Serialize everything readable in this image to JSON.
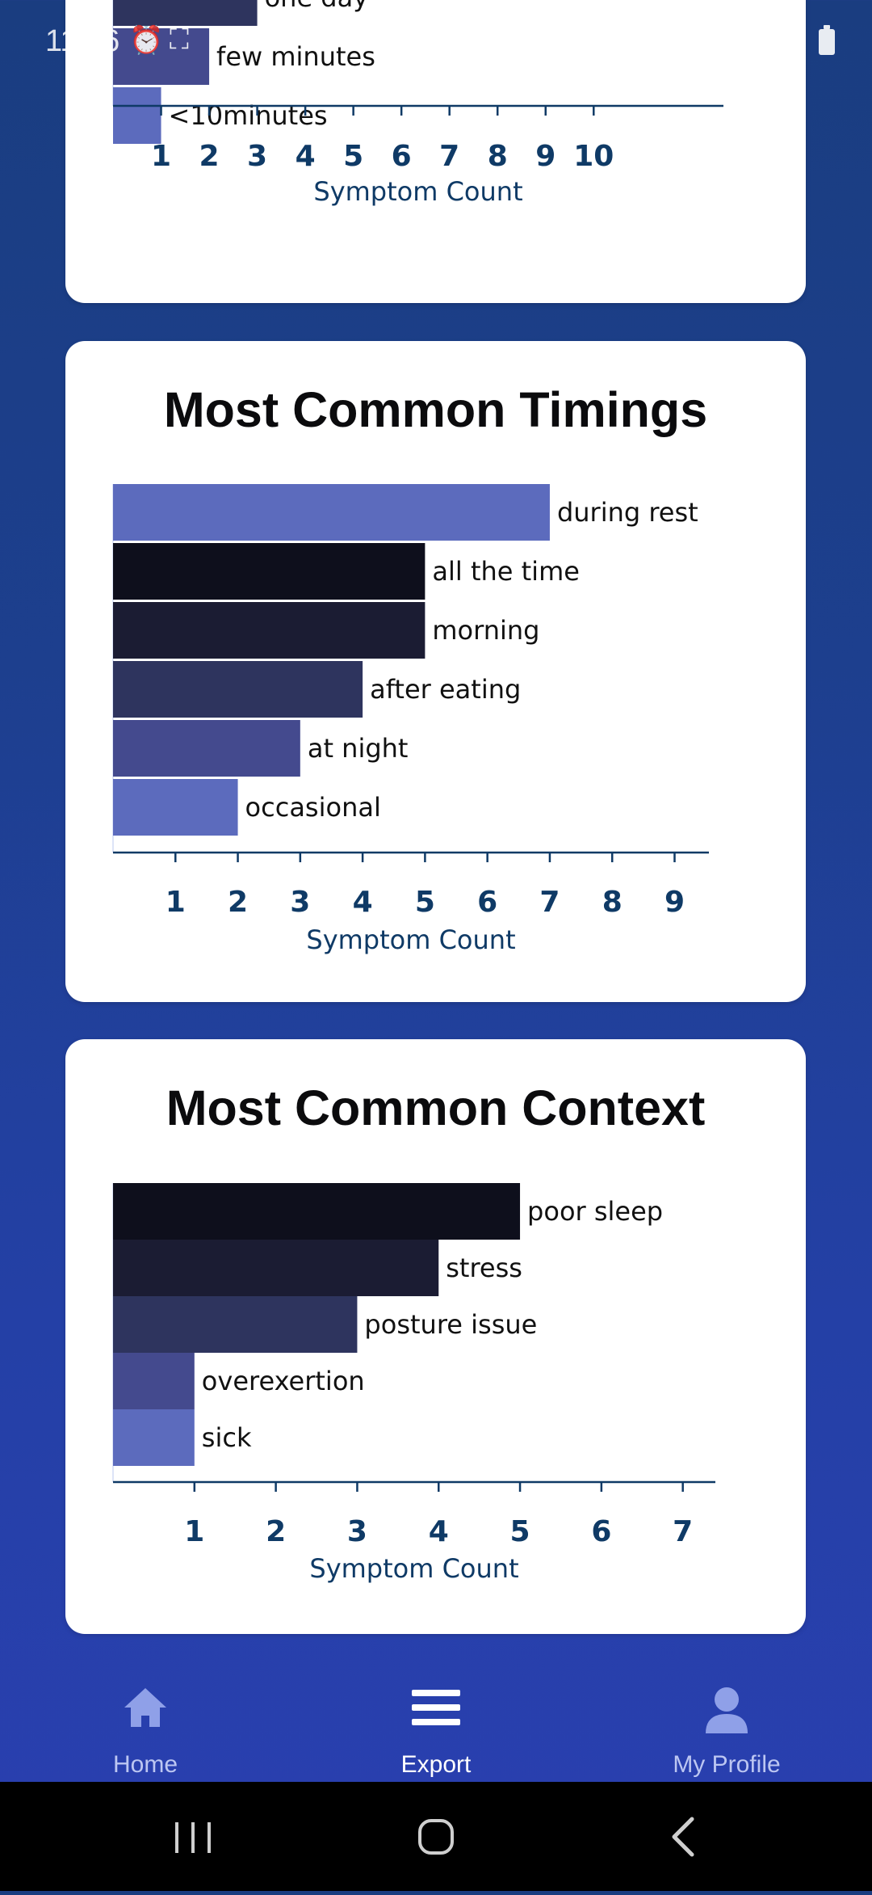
{
  "status_bar": {
    "time": "11:56"
  },
  "charts": [
    {
      "card_id": "duration",
      "chart_data": {
        "type": "bar",
        "categories": [
          "one day",
          "few minutes",
          "<10minutes"
        ],
        "values": [
          3,
          2,
          1
        ],
        "xlabel": "Symptom Count",
        "xlim": [
          0,
          12.7
        ],
        "ticks": [
          1,
          2,
          3,
          4,
          5,
          6,
          7,
          8,
          9,
          10
        ],
        "colors": [
          "#2e345e",
          "#444a8e",
          "#5c6bbd"
        ]
      }
    },
    {
      "card_id": "timings",
      "title": "Most Common Timings",
      "chart_data": {
        "type": "bar",
        "title": "Most Common Timings",
        "categories": [
          "during rest",
          "all the time",
          "morning",
          "after eating",
          "at night",
          "occasional"
        ],
        "values": [
          7,
          5,
          5,
          4,
          3,
          2
        ],
        "xlabel": "Symptom Count",
        "xlim": [
          0,
          9.55
        ],
        "ticks": [
          1,
          2,
          3,
          4,
          5,
          6,
          7,
          8,
          9
        ],
        "colors": [
          "#5c6bbd",
          "#0e0f1c",
          "#1b1c33",
          "#2e345e",
          "#444a8e",
          "#5c6bbd"
        ]
      }
    },
    {
      "card_id": "context",
      "title": "Most Common Context",
      "chart_data": {
        "type": "bar",
        "title": "Most Common Context",
        "categories": [
          "poor sleep",
          "stress",
          "posture issue",
          "overexertion",
          "sick"
        ],
        "values": [
          5,
          4,
          3,
          1,
          1
        ],
        "xlabel": "Symptom Count",
        "xlim": [
          0,
          7.4
        ],
        "ticks": [
          1,
          2,
          3,
          4,
          5,
          6,
          7
        ],
        "colors": [
          "#0e0f1c",
          "#1b1c33",
          "#2e345e",
          "#444a8e",
          "#5c6bbd"
        ]
      }
    }
  ],
  "bottom_nav": {
    "items": [
      {
        "label": "Home",
        "icon": "home-icon",
        "active": false
      },
      {
        "label": "Export",
        "icon": "menu-icon",
        "active": true
      },
      {
        "label": "My Profile",
        "icon": "profile-icon",
        "active": false
      }
    ]
  },
  "system_nav": {
    "buttons": [
      "recents-icon",
      "home-circle-icon",
      "back-icon"
    ]
  }
}
